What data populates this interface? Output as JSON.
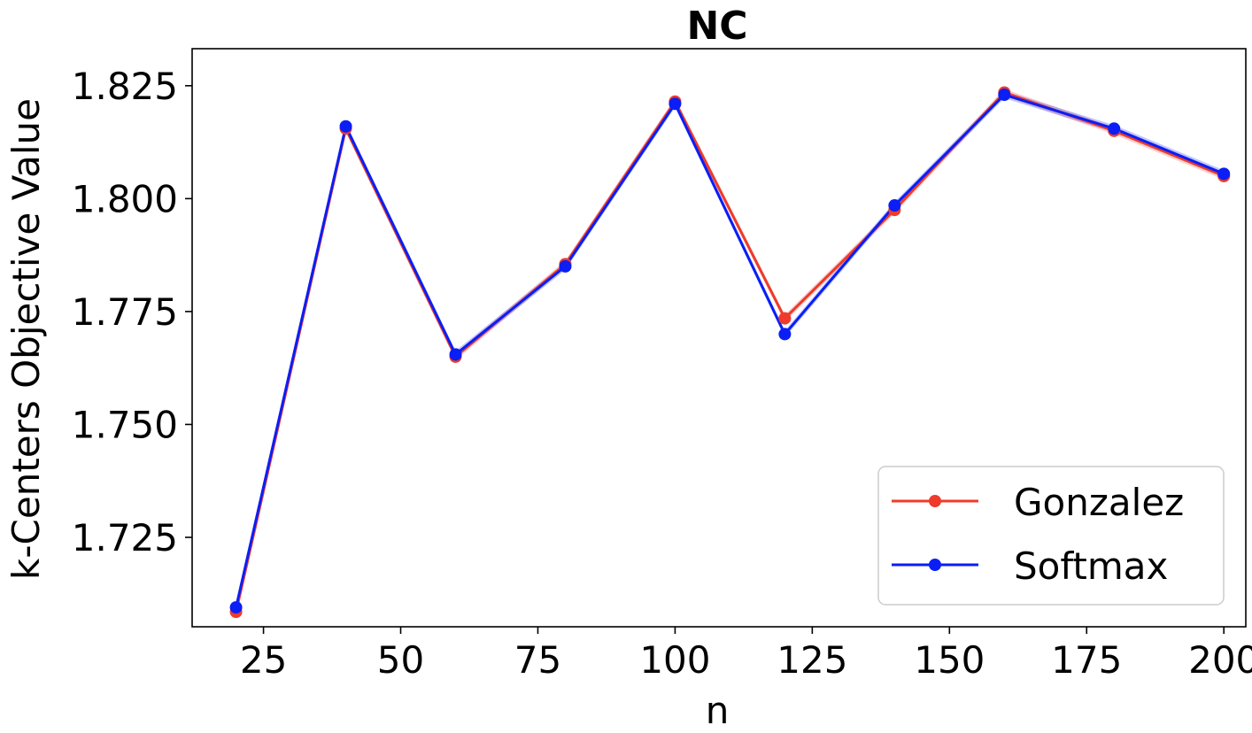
{
  "colors": {
    "gonzalez": "#ee3b2b",
    "softmax": "#0a1ef5"
  },
  "chart_data": {
    "type": "line",
    "title": "NC",
    "xlabel": "n",
    "ylabel": "k-Centers Objective Value",
    "xlim": [
      12,
      204
    ],
    "ylim": [
      1.7052,
      1.8332
    ],
    "xticks": [
      25,
      50,
      75,
      100,
      125,
      150,
      175,
      200
    ],
    "yticks": [
      1.725,
      1.75,
      1.775,
      1.8,
      1.825
    ],
    "ytick_labels": [
      "1.725",
      "1.750",
      "1.775",
      "1.800",
      "1.825"
    ],
    "xtick_labels": [
      "25",
      "50",
      "75",
      "100",
      "125",
      "150",
      "175",
      "200"
    ],
    "grid": false,
    "legend": "lower-right",
    "x": [
      20,
      40,
      60,
      80,
      100,
      120,
      140,
      160,
      180,
      200
    ],
    "series": [
      {
        "name": "Gonzalez",
        "values": [
          1.7085,
          1.8155,
          1.765,
          1.7855,
          1.8215,
          1.7735,
          1.7975,
          1.8235,
          1.815,
          1.805
        ],
        "band": 0.0008
      },
      {
        "name": "Softmax",
        "values": [
          1.7095,
          1.816,
          1.7655,
          1.785,
          1.821,
          1.77,
          1.7985,
          1.823,
          1.8155,
          1.8055
        ],
        "band": 0.0008
      }
    ]
  }
}
